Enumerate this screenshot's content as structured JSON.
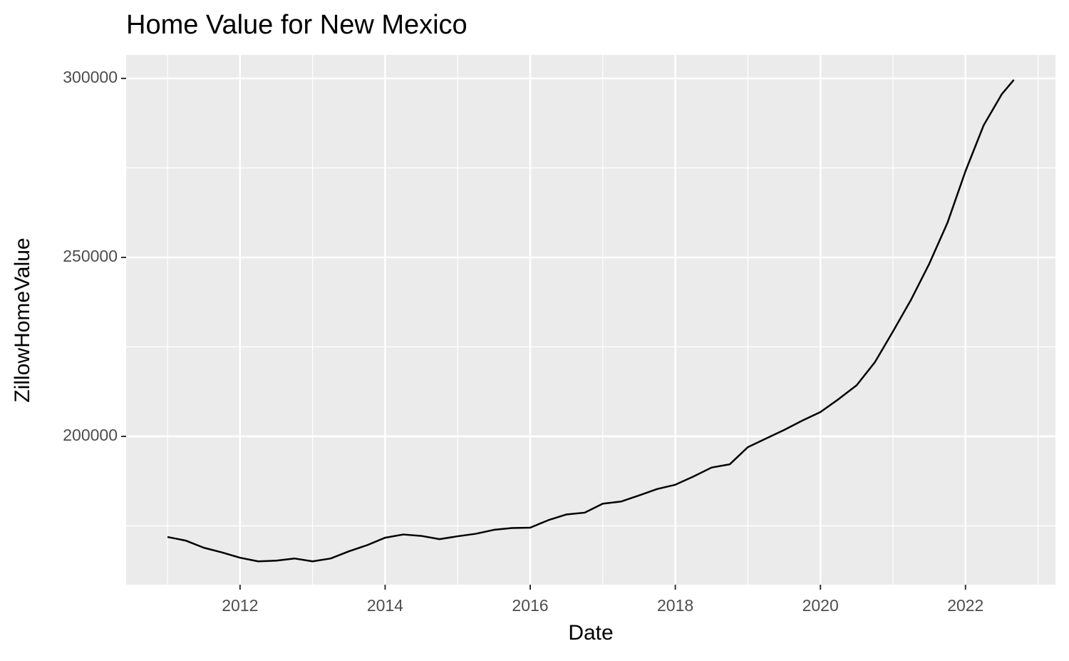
{
  "chart_data": {
    "type": "line",
    "title": "Home Value for New Mexico",
    "x_label": "Date",
    "y_label": "ZillowHomeValue",
    "x": [
      2011.0,
      2011.25,
      2011.5,
      2011.75,
      2012.0,
      2012.25,
      2012.5,
      2012.75,
      2013.0,
      2013.25,
      2013.5,
      2013.75,
      2014.0,
      2014.25,
      2014.5,
      2014.75,
      2015.0,
      2015.25,
      2015.5,
      2015.75,
      2016.0,
      2016.25,
      2016.5,
      2016.75,
      2017.0,
      2017.25,
      2017.5,
      2017.75,
      2018.0,
      2018.25,
      2018.5,
      2018.75,
      2019.0,
      2019.25,
      2019.5,
      2019.75,
      2020.0,
      2020.25,
      2020.5,
      2020.75,
      2021.0,
      2021.25,
      2021.5,
      2021.75,
      2022.0,
      2022.25,
      2022.5,
      2022.667
    ],
    "series": [
      {
        "name": "ZillowHomeValue",
        "color": "#000000",
        "values": [
          171900,
          170900,
          168900,
          167600,
          166100,
          165100,
          165300,
          165900,
          165100,
          165900,
          167900,
          169600,
          171700,
          172600,
          172200,
          171300,
          172100,
          172800,
          173900,
          174400,
          174500,
          176600,
          178200,
          178700,
          181200,
          181800,
          183500,
          185300,
          186500,
          188800,
          191300,
          192200,
          197000,
          199400,
          201800,
          204400,
          206800,
          210400,
          214300,
          220700,
          229300,
          238200,
          248200,
          259600,
          274100,
          286900,
          295600,
          299600
        ]
      }
    ],
    "xlim": [
      2010.43,
      2023.24
    ],
    "xticks": [
      2012,
      2014,
      2016,
      2018,
      2020,
      2022
    ],
    "ylim": [
      158570,
      306570
    ],
    "yticks": [
      200000,
      250000,
      300000
    ],
    "grid": true
  }
}
